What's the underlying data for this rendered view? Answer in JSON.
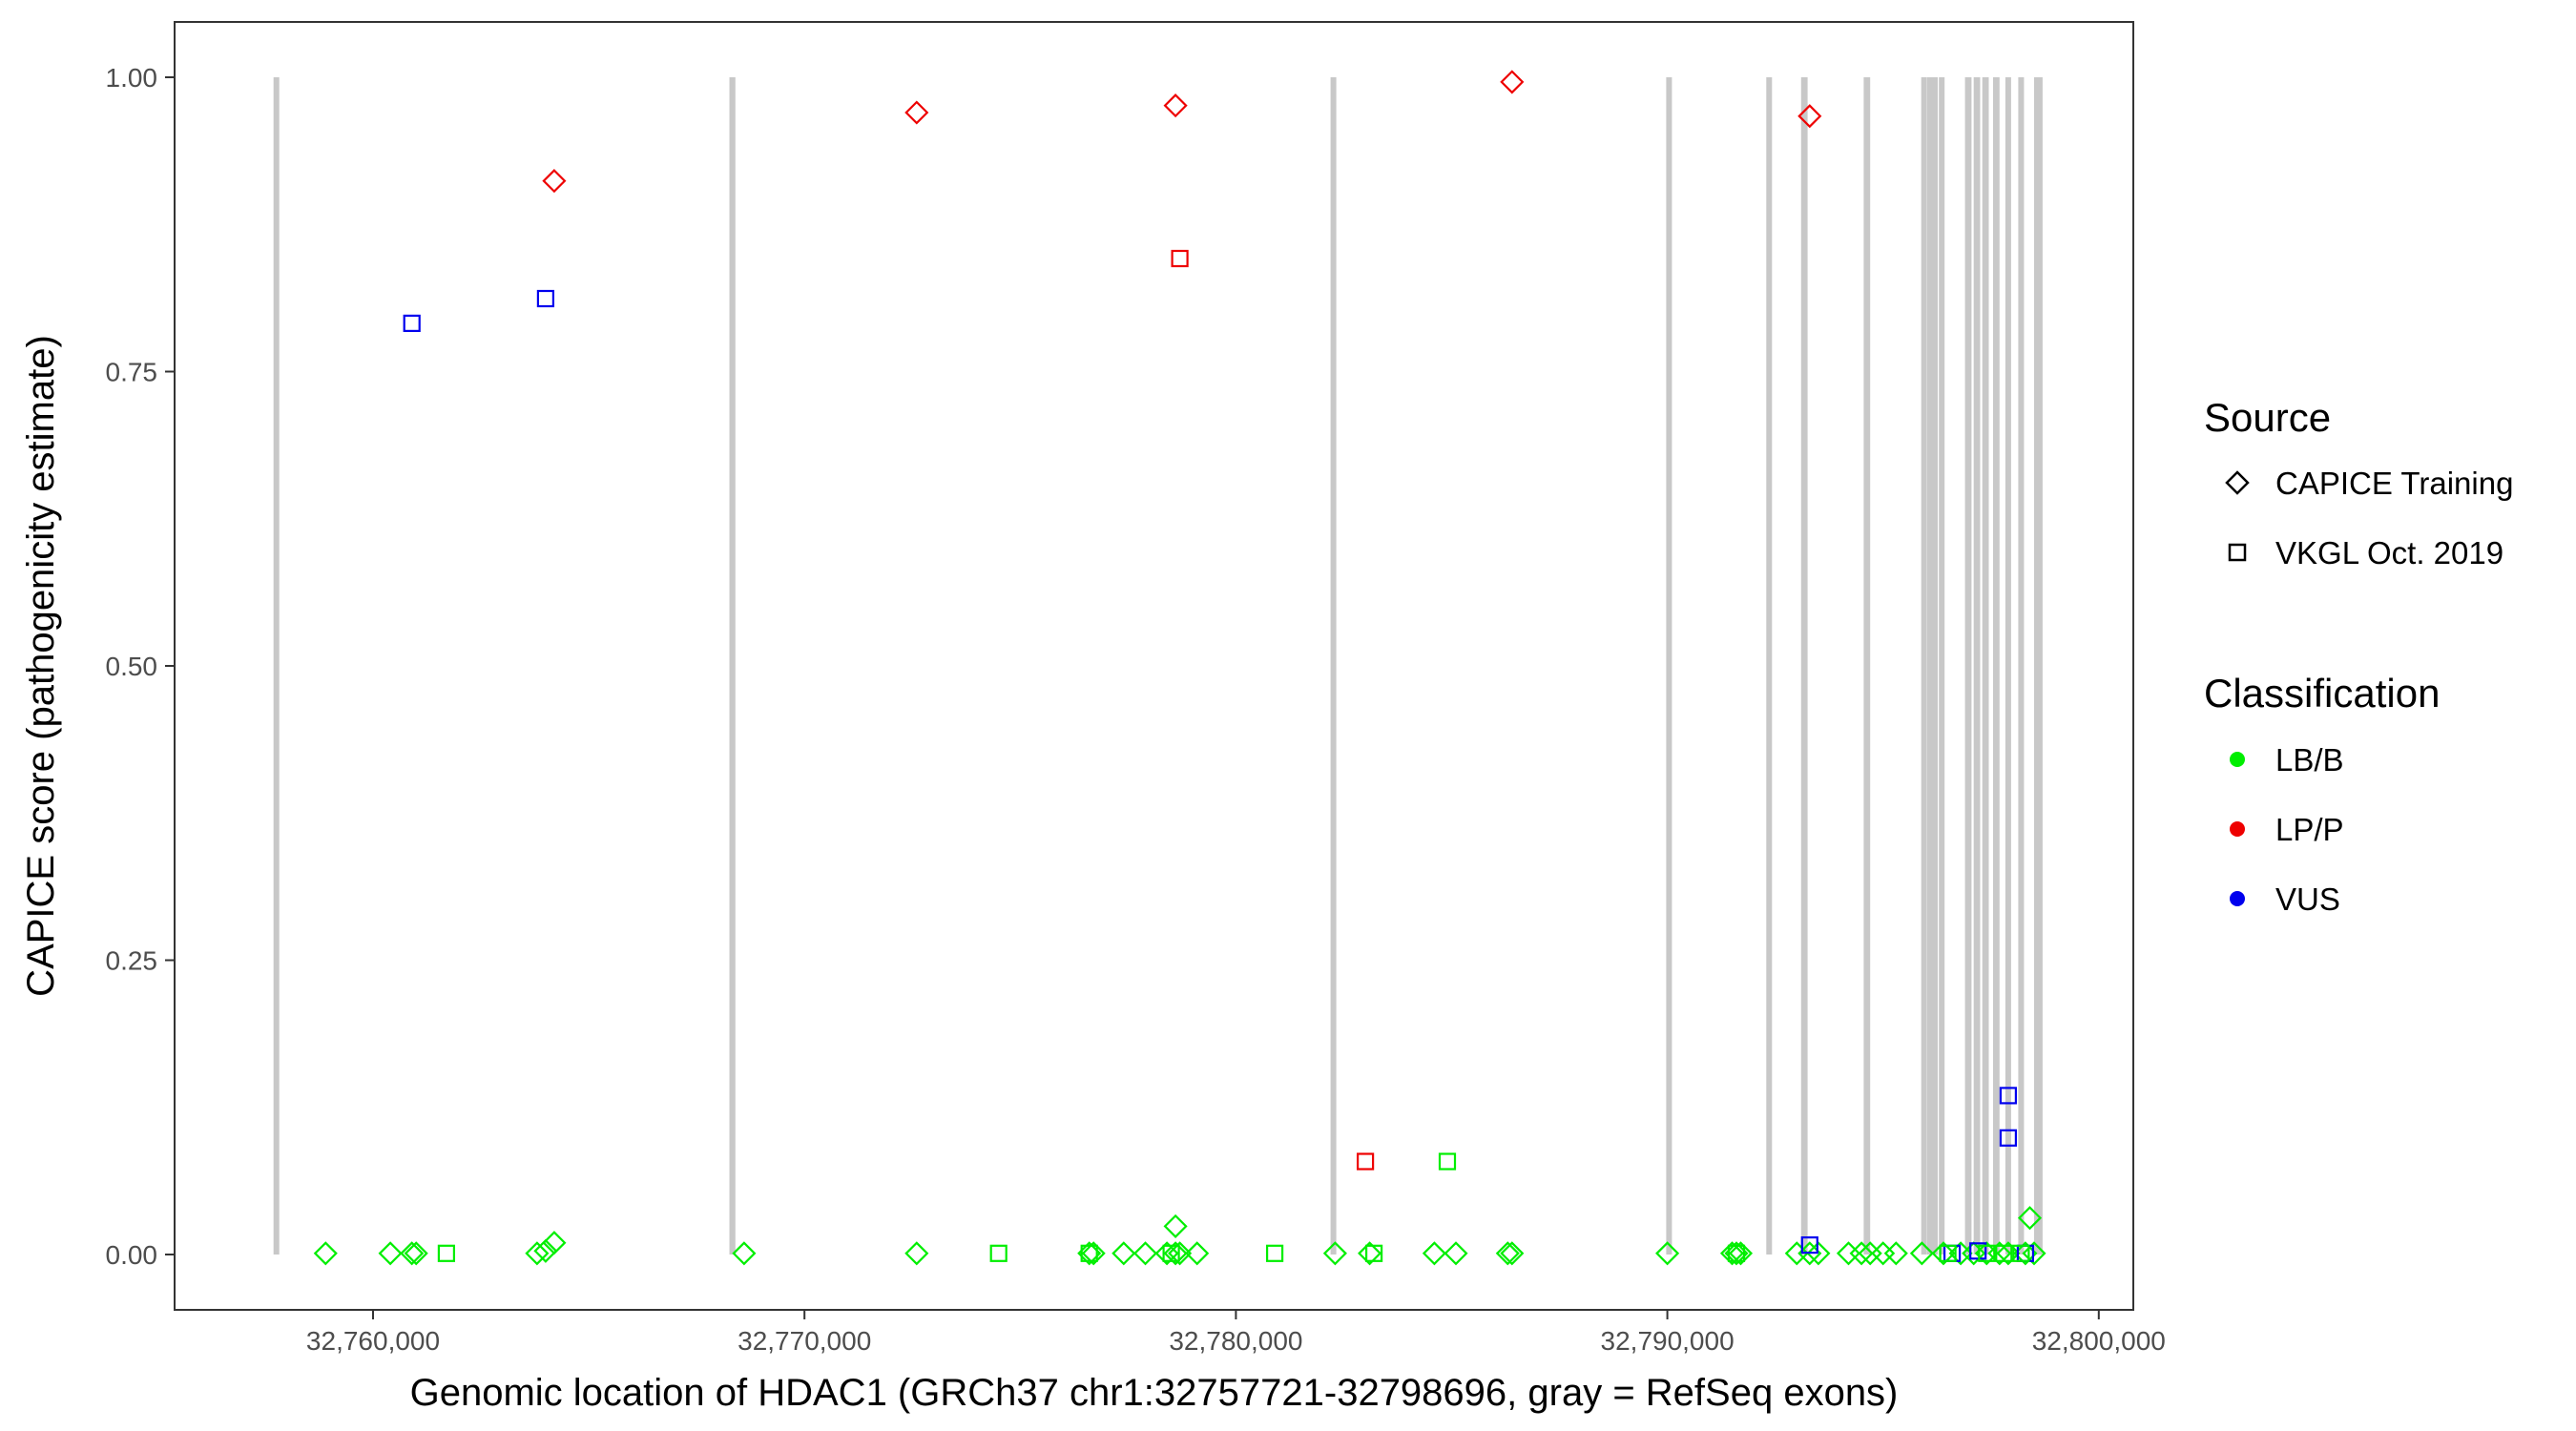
{
  "chart_data": {
    "type": "scatter",
    "xlabel": "Genomic location of HDAC1 (GRCh37 chr1:32757721-32798696, gray = RefSeq exons)",
    "ylabel": "CAPICE score (pathogenicity estimate)",
    "xlim": [
      32755400,
      32800800
    ],
    "ylim": [
      -0.047,
      1.047
    ],
    "x_ticks": [
      32760000,
      32770000,
      32780000,
      32790000,
      32800000
    ],
    "x_tick_labels": [
      "32,760,000",
      "32,770,000",
      "32,780,000",
      "32,790,000",
      "32,800,000"
    ],
    "y_ticks": [
      0,
      0.25,
      0.5,
      0.75,
      1.0
    ],
    "y_tick_labels": [
      "0.00",
      "0.25",
      "0.50",
      "0.75",
      "1.00"
    ],
    "grid": false,
    "exon_color": "#c8c8c8",
    "exons": [
      [
        32757721,
        32757800
      ],
      [
        32768260,
        32768400
      ],
      [
        32782200,
        32782320
      ],
      [
        32790000,
        32790080
      ],
      [
        32792300,
        32792420
      ],
      [
        32793100,
        32793250
      ],
      [
        32794550,
        32794700
      ],
      [
        32795900,
        32796000
      ],
      [
        32796050,
        32796130
      ],
      [
        32796150,
        32796250
      ],
      [
        32796300,
        32796420
      ],
      [
        32796900,
        32797050
      ],
      [
        32797100,
        32797250
      ],
      [
        32797300,
        32797450
      ],
      [
        32797550,
        32797700
      ],
      [
        32797850,
        32797950
      ],
      [
        32798150,
        32798250
      ],
      [
        32798500,
        32798696
      ]
    ],
    "legend": {
      "position": "right",
      "source": {
        "title": "Source",
        "entries": [
          {
            "label": "CAPICE Training",
            "shape": "diamond"
          },
          {
            "label": "VKGL Oct. 2019",
            "shape": "square"
          }
        ]
      },
      "classification": {
        "title": "Classification",
        "entries": [
          {
            "label": "LB/B",
            "color": "#00ee00"
          },
          {
            "label": "LP/P",
            "color": "#ee0000"
          },
          {
            "label": "VUS",
            "color": "#0000ee"
          }
        ]
      }
    },
    "series": [
      {
        "source": "CAPICE Training",
        "classification": "LP/P",
        "points": [
          [
            32764200,
            0.912
          ],
          [
            32772600,
            0.97
          ],
          [
            32778600,
            0.976
          ],
          [
            32786400,
            0.996
          ],
          [
            32793300,
            0.967
          ]
        ]
      },
      {
        "source": "CAPICE Training",
        "classification": "LB/B",
        "points": [
          [
            32758900,
            0.001
          ],
          [
            32760400,
            0.001
          ],
          [
            32760900,
            0.001
          ],
          [
            32761000,
            0.001
          ],
          [
            32763800,
            0.001
          ],
          [
            32764000,
            0.003
          ],
          [
            32764200,
            0.01
          ],
          [
            32768600,
            0.001
          ],
          [
            32772600,
            0.001
          ],
          [
            32776600,
            0.001
          ],
          [
            32776700,
            0.001
          ],
          [
            32777400,
            0.001
          ],
          [
            32777900,
            0.001
          ],
          [
            32778400,
            0.001
          ],
          [
            32778600,
            0.001
          ],
          [
            32778700,
            0.001
          ],
          [
            32779100,
            0.001
          ],
          [
            32778600,
            0.024
          ],
          [
            32782300,
            0.001
          ],
          [
            32783100,
            0.001
          ],
          [
            32784600,
            0.001
          ],
          [
            32785100,
            0.001
          ],
          [
            32786300,
            0.001
          ],
          [
            32786400,
            0.001
          ],
          [
            32790000,
            0.001
          ],
          [
            32791500,
            0.001
          ],
          [
            32791600,
            0.001
          ],
          [
            32791700,
            0.001
          ],
          [
            32793000,
            0.001
          ],
          [
            32793300,
            0.001
          ],
          [
            32793500,
            0.001
          ],
          [
            32794200,
            0.001
          ],
          [
            32794500,
            0.001
          ],
          [
            32794700,
            0.001
          ],
          [
            32795000,
            0.001
          ],
          [
            32795300,
            0.001
          ],
          [
            32795900,
            0.001
          ],
          [
            32796400,
            0.001
          ],
          [
            32796800,
            0.001
          ],
          [
            32797100,
            0.001
          ],
          [
            32797400,
            0.001
          ],
          [
            32797700,
            0.001
          ],
          [
            32797900,
            0.001
          ],
          [
            32798300,
            0.001
          ],
          [
            32798500,
            0.001
          ],
          [
            32798400,
            0.031
          ]
        ]
      },
      {
        "source": "VKGL Oct. 2019",
        "classification": "VUS",
        "points": [
          [
            32760900,
            0.791
          ],
          [
            32764000,
            0.812
          ],
          [
            32793300,
            0.008
          ],
          [
            32796600,
            0.001
          ],
          [
            32797200,
            0.003
          ],
          [
            32797900,
            0.135
          ],
          [
            32797900,
            0.099
          ],
          [
            32798300,
            0.001
          ]
        ]
      },
      {
        "source": "VKGL Oct. 2019",
        "classification": "LP/P",
        "points": [
          [
            32778700,
            0.846
          ],
          [
            32783000,
            0.079
          ]
        ]
      },
      {
        "source": "VKGL Oct. 2019",
        "classification": "LB/B",
        "points": [
          [
            32761700,
            0.001
          ],
          [
            32774500,
            0.001
          ],
          [
            32776600,
            0.001
          ],
          [
            32778500,
            0.001
          ],
          [
            32780900,
            0.001
          ],
          [
            32783200,
            0.001
          ],
          [
            32784900,
            0.079
          ],
          [
            32791600,
            0.001
          ],
          [
            32796500,
            0.001
          ],
          [
            32797400,
            0.001
          ],
          [
            32797800,
            0.001
          ],
          [
            32798200,
            0.001
          ]
        ]
      }
    ]
  }
}
